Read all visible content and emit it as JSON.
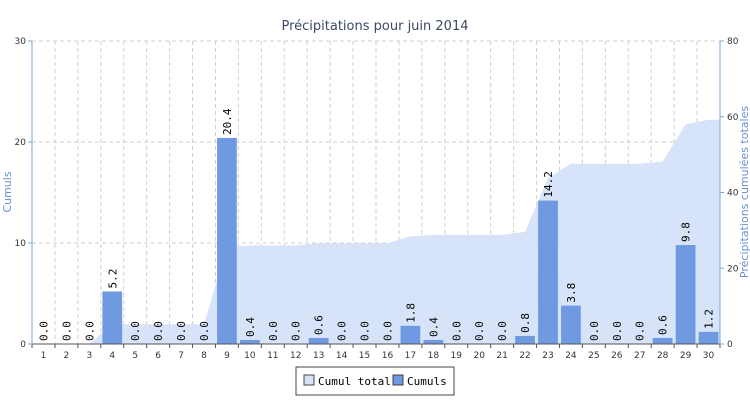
{
  "chart_data": {
    "type": "bar",
    "title": "Précipitations pour juin 2014",
    "categories": [
      "1",
      "2",
      "3",
      "4",
      "5",
      "6",
      "7",
      "8",
      "9",
      "10",
      "11",
      "12",
      "13",
      "14",
      "15",
      "16",
      "17",
      "18",
      "19",
      "20",
      "21",
      "22",
      "23",
      "24",
      "25",
      "26",
      "27",
      "28",
      "29",
      "30"
    ],
    "ylabel": "Cumuls",
    "y2label": "Précipitations cumulées totales",
    "ylim": [
      0,
      30
    ],
    "y2lim": [
      0,
      80
    ],
    "yticks": [
      "0",
      "10",
      "20",
      "30"
    ],
    "y2ticks": [
      "0",
      "20",
      "40",
      "60",
      "80"
    ],
    "grid": true,
    "legend_position": "bottom",
    "series": [
      {
        "name": "Cumuls",
        "type": "bar",
        "axis": "left",
        "color": "#6f99e0",
        "values": [
          0.0,
          0.0,
          0.0,
          5.2,
          0.0,
          0.0,
          0.0,
          0.0,
          20.4,
          0.4,
          0.0,
          0.0,
          0.6,
          0.0,
          0.0,
          0.0,
          1.8,
          0.4,
          0.0,
          0.0,
          0.0,
          0.8,
          14.2,
          3.8,
          0.0,
          0.0,
          0.0,
          0.6,
          9.8,
          1.2
        ],
        "labels": [
          "0.0",
          "0.0",
          "0.0",
          "5.2",
          "0.0",
          "0.0",
          "0.0",
          "0.0",
          "20.4",
          "0.4",
          "0.0",
          "0.0",
          "0.6",
          "0.0",
          "0.0",
          "0.0",
          "1.8",
          "0.4",
          "0.0",
          "0.0",
          "0.0",
          "0.8",
          "14.2",
          "3.8",
          "0.0",
          "0.0",
          "0.0",
          "0.6",
          "9.8",
          "1.2"
        ]
      },
      {
        "name": "Cumul total",
        "type": "area",
        "axis": "right",
        "color": "#d5e2f8",
        "values": [
          0.0,
          0.0,
          0.0,
          5.2,
          5.2,
          5.2,
          5.2,
          5.2,
          25.6,
          26.0,
          26.0,
          26.0,
          26.6,
          26.6,
          26.6,
          26.6,
          28.4,
          28.8,
          28.8,
          28.8,
          28.8,
          29.6,
          43.8,
          47.6,
          47.6,
          47.6,
          47.6,
          48.2,
          58.0,
          59.2
        ]
      }
    ]
  }
}
